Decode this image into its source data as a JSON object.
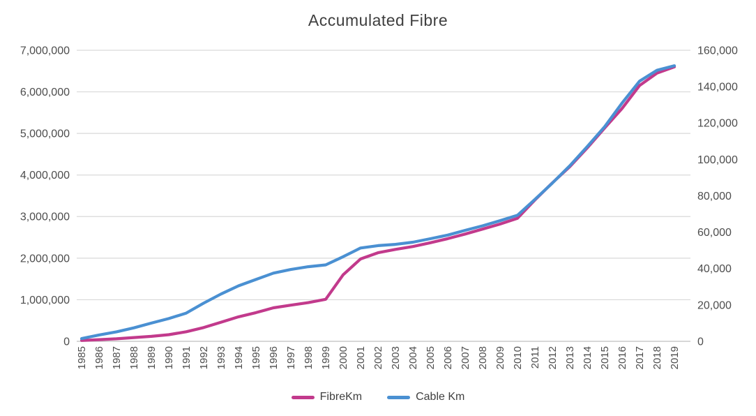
{
  "chart_data": {
    "type": "line",
    "title": "Accumulated Fibre",
    "x": [
      1985,
      1986,
      1987,
      1988,
      1989,
      1990,
      1991,
      1992,
      1993,
      1994,
      1995,
      1996,
      1997,
      1998,
      1999,
      2000,
      2001,
      2002,
      2003,
      2004,
      2005,
      2006,
      2007,
      2008,
      2009,
      2010,
      2011,
      2012,
      2013,
      2014,
      2015,
      2016,
      2017,
      2018,
      2019
    ],
    "series": [
      {
        "name": "FibreKm",
        "axis": "left",
        "color": "#c23a8c",
        "values": [
          20000,
          40000,
          60000,
          90000,
          120000,
          160000,
          230000,
          330000,
          460000,
          590000,
          690000,
          805000,
          870000,
          930000,
          1010000,
          1600000,
          1980000,
          2130000,
          2210000,
          2280000,
          2370000,
          2470000,
          2580000,
          2700000,
          2820000,
          2960000,
          3400000,
          3810000,
          4200000,
          4650000,
          5130000,
          5600000,
          6150000,
          6450000,
          6600000
        ]
      },
      {
        "name": "Cable Km",
        "axis": "right",
        "color": "#4a90d2",
        "values": [
          1500,
          3500,
          5200,
          7400,
          10000,
          12500,
          15500,
          21000,
          26000,
          30500,
          34000,
          37500,
          39500,
          41000,
          42000,
          46500,
          51300,
          52600,
          53300,
          54500,
          56400,
          58400,
          61000,
          63500,
          66300,
          69300,
          78000,
          87000,
          96500,
          107000,
          118000,
          131000,
          143000,
          149000,
          151500
        ]
      }
    ],
    "axes": {
      "left": {
        "min": 0,
        "max": 7000000,
        "step": 1000000,
        "tick_labels": [
          "7,000,000",
          "6,000,000",
          "5,000,000",
          "4,000,000",
          "3,000,000",
          "2,000,000",
          "1,000,000",
          "0"
        ]
      },
      "right": {
        "min": 0,
        "max": 160000,
        "step": 20000,
        "tick_labels": [
          "160,000",
          "140,000",
          "120,000",
          "100,000",
          "80,000",
          "60,000",
          "40,000",
          "20,000",
          "0"
        ]
      }
    },
    "grid": true,
    "legend_position": "bottom",
    "xlabel": "",
    "ylabel": ""
  },
  "colors": {
    "grid_line": "#d9d9d9",
    "axis_line": "#bfbfbf",
    "tick_label": "#4d4d4d",
    "title_text": "#3f3f3f",
    "background": "#ffffff"
  }
}
